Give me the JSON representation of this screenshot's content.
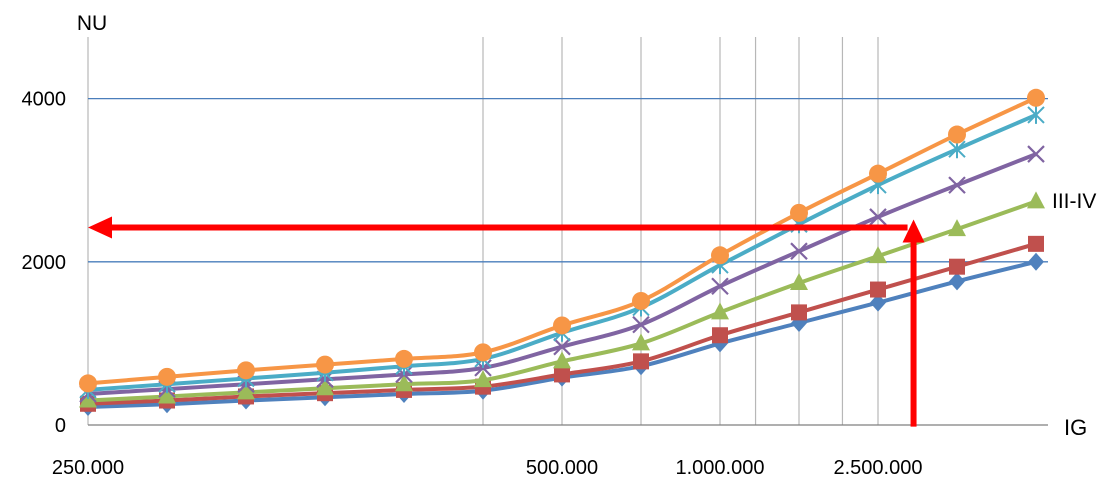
{
  "chart_data": {
    "type": "line",
    "ylabel": "NU",
    "xlabel": "IG",
    "ylim": [
      0,
      5000
    ],
    "yticks": [
      0,
      2000,
      4000
    ],
    "ytick_labels": [
      "0",
      "2000",
      "4000"
    ],
    "xtick_labels": [
      {
        "label": "250.000",
        "index": 0
      },
      {
        "label": "500.000",
        "index": 6
      },
      {
        "label": "1.000.000",
        "index": 8
      },
      {
        "label": "2.500.000",
        "index": 10
      }
    ],
    "x": [
      0,
      1,
      2,
      3,
      4,
      5,
      6,
      7,
      8,
      9,
      10,
      11,
      12
    ],
    "vertical_gridlines": [
      0,
      5,
      6,
      7,
      8,
      8.45,
      9,
      9.55,
      10
    ],
    "horizontal_gridlines": [
      2000,
      4000
    ],
    "series_label": {
      "text": "III-IV",
      "series_index": 4
    },
    "series": [
      {
        "color": "#4f81bd",
        "marker": "diamond",
        "values": [
          220,
          255,
          300,
          340,
          380,
          420,
          580,
          720,
          1000,
          1250,
          1500,
          1760,
          2000
        ]
      },
      {
        "color": "#c0504d",
        "marker": "square",
        "values": [
          260,
          300,
          350,
          390,
          430,
          470,
          620,
          780,
          1100,
          1380,
          1660,
          1940,
          2220
        ]
      },
      {
        "color": "#9bbb59",
        "marker": "triangle",
        "values": [
          300,
          350,
          400,
          450,
          500,
          550,
          780,
          1000,
          1380,
          1740,
          2070,
          2400,
          2740
        ]
      },
      {
        "color": "#8064a2",
        "marker": "x",
        "values": [
          380,
          440,
          500,
          560,
          620,
          700,
          960,
          1230,
          1700,
          2130,
          2550,
          2940,
          3320
        ]
      },
      {
        "color": "#4bacc6",
        "marker": "star",
        "values": [
          430,
          500,
          570,
          640,
          720,
          810,
          1130,
          1440,
          1960,
          2460,
          2940,
          3380,
          3800
        ]
      },
      {
        "color": "#f79646",
        "marker": "circle",
        "values": [
          510,
          590,
          670,
          740,
          810,
          890,
          1220,
          1520,
          2080,
          2600,
          3080,
          3560,
          4010
        ]
      }
    ],
    "arrow_color": "#ff0000",
    "arrow": {
      "from_x": 10.45,
      "from_y": -20,
      "corner_y": 2420,
      "to_x": 0
    },
    "legend": "none"
  }
}
